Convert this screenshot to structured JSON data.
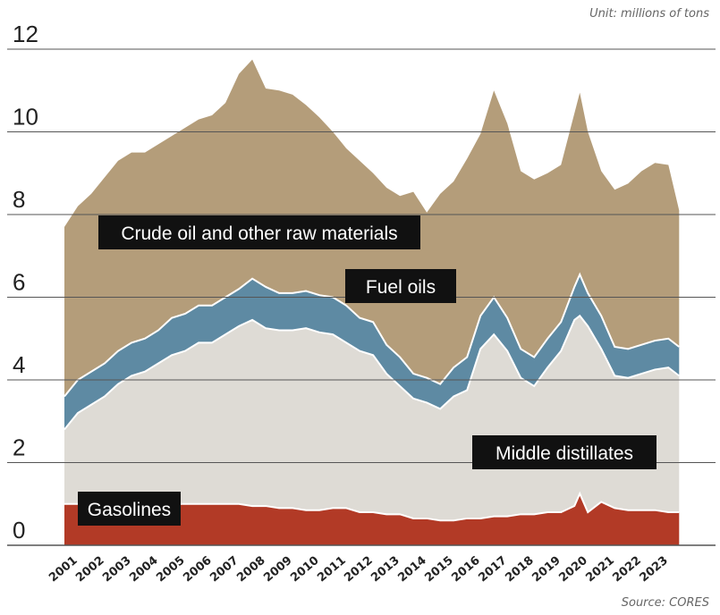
{
  "unit_label": "Unit: millions of tons",
  "source_label": "Source: CORES",
  "colors": {
    "crude": "#b49d7a",
    "fuel": "#5e8aa3",
    "middle": "#dedbd5",
    "gasolines": "#b23a26",
    "grid": "#555555",
    "label_bg": "#111111",
    "label_fg": "#ffffff"
  },
  "chart_data": {
    "type": "area",
    "stacked": true,
    "title": "",
    "xlabel": "",
    "ylabel": "",
    "ylim": [
      0,
      12
    ],
    "yticks": [
      0,
      2,
      4,
      6,
      8,
      10,
      12
    ],
    "xlim": [
      2001,
      2023.99
    ],
    "categories": [
      "2001",
      "2002",
      "2003",
      "2004",
      "2005",
      "2006",
      "2007",
      "2008",
      "2009",
      "2010",
      "2011",
      "2012",
      "2013",
      "2014",
      "2015",
      "2016",
      "2017",
      "2018",
      "2019",
      "2020",
      "2021",
      "2022",
      "2023"
    ],
    "x": [
      2001.0,
      2001.5,
      2002.0,
      2002.5,
      2003.0,
      2003.5,
      2004.0,
      2004.5,
      2005.0,
      2005.5,
      2006.0,
      2006.5,
      2007.0,
      2007.5,
      2008.0,
      2008.5,
      2009.0,
      2009.5,
      2010.0,
      2010.5,
      2011.0,
      2011.5,
      2012.0,
      2012.5,
      2013.0,
      2013.5,
      2014.0,
      2014.5,
      2015.0,
      2015.5,
      2016.0,
      2016.5,
      2017.0,
      2017.5,
      2018.0,
      2018.5,
      2019.0,
      2019.5,
      2020.0,
      2020.2,
      2020.5,
      2021.0,
      2021.5,
      2022.0,
      2022.5,
      2023.0,
      2023.5,
      2023.9
    ],
    "series": [
      {
        "name": "Gasolines",
        "label": "Gasolines",
        "values": [
          1.0,
          1.0,
          1.0,
          1.0,
          1.0,
          1.0,
          1.0,
          1.0,
          1.0,
          1.0,
          1.0,
          1.0,
          1.0,
          1.0,
          0.95,
          0.95,
          0.9,
          0.9,
          0.85,
          0.85,
          0.9,
          0.9,
          0.8,
          0.8,
          0.75,
          0.75,
          0.65,
          0.65,
          0.6,
          0.6,
          0.65,
          0.65,
          0.7,
          0.7,
          0.75,
          0.75,
          0.8,
          0.8,
          0.95,
          1.25,
          0.8,
          1.05,
          0.9,
          0.85,
          0.85,
          0.85,
          0.8,
          0.8
        ]
      },
      {
        "name": "Middle distillates",
        "label": "Middle distillates",
        "values": [
          1.8,
          2.2,
          2.4,
          2.6,
          2.9,
          3.1,
          3.2,
          3.4,
          3.6,
          3.7,
          3.9,
          3.9,
          4.1,
          4.3,
          4.5,
          4.3,
          4.3,
          4.3,
          4.4,
          4.3,
          4.2,
          4.0,
          3.9,
          3.8,
          3.4,
          3.1,
          2.9,
          2.8,
          2.7,
          3.0,
          3.1,
          4.1,
          4.4,
          4.0,
          3.3,
          3.1,
          3.5,
          3.9,
          4.5,
          4.3,
          4.5,
          3.7,
          3.2,
          3.2,
          3.3,
          3.4,
          3.5,
          3.3
        ]
      },
      {
        "name": "Fuel oils",
        "label": "Fuel oils",
        "values": [
          0.8,
          0.8,
          0.8,
          0.8,
          0.8,
          0.8,
          0.8,
          0.8,
          0.9,
          0.9,
          0.9,
          0.9,
          0.9,
          0.9,
          1.0,
          1.0,
          0.9,
          0.9,
          0.9,
          0.9,
          0.9,
          0.9,
          0.8,
          0.8,
          0.7,
          0.7,
          0.6,
          0.6,
          0.6,
          0.7,
          0.8,
          0.8,
          0.9,
          0.8,
          0.7,
          0.7,
          0.7,
          0.7,
          0.8,
          1.0,
          0.8,
          0.8,
          0.7,
          0.7,
          0.7,
          0.7,
          0.7,
          0.7
        ]
      },
      {
        "name": "Crude oil and other raw materials",
        "label": "Crude oil and other raw materials",
        "values": [
          4.1,
          4.2,
          4.3,
          4.5,
          4.6,
          4.6,
          4.5,
          4.5,
          4.4,
          4.5,
          4.5,
          4.6,
          4.7,
          5.2,
          5.3,
          4.8,
          4.9,
          4.8,
          4.5,
          4.3,
          4.0,
          3.8,
          3.8,
          3.6,
          3.8,
          3.9,
          4.4,
          4.0,
          4.6,
          4.5,
          4.8,
          4.4,
          5.0,
          4.7,
          4.3,
          4.3,
          4.0,
          3.8,
          4.2,
          4.4,
          3.9,
          3.5,
          3.8,
          4.0,
          4.2,
          4.3,
          4.2,
          3.3
        ]
      }
    ],
    "annotations": [
      "Crude oil and other raw materials",
      "Fuel oils",
      "Middle distillates",
      "Gasolines"
    ]
  }
}
